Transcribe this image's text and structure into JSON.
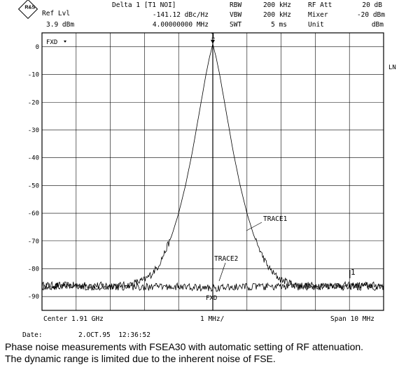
{
  "header": {
    "logo": "R&S",
    "ref_lvl_label": "Ref Lvl",
    "ref_lvl_value": "3.9 dBm",
    "marker_title": "Delta 1 [T1 NOI]",
    "marker_value": "-141.12 dBc/Hz",
    "marker_freq": "4.00000000 MHz",
    "rbw_label": "RBW",
    "rbw_value": "200 kHz",
    "vbw_label": "VBW",
    "vbw_value": "200 kHz",
    "swt_label": "SWT",
    "swt_value": "5 ms",
    "rfatt_label": "RF Att",
    "rfatt_value": "20 dB",
    "mixer_label": "Mixer",
    "mixer_value": "-20 dBm",
    "unit_label": "Unit",
    "unit_value": "dBm"
  },
  "screen_labels": {
    "fxd_top": "FXD",
    "ln": "LN",
    "fxd_bottom": "FXD",
    "marker1": "1",
    "marker_delta": "1"
  },
  "footer": {
    "center": "Center 1.91 GHz",
    "div": "1 MHz/",
    "span": "Span 10 MHz",
    "date_label": "Date:",
    "date_value": "2.OCT.95  12:36:52"
  },
  "caption": [
    "Phase noise measurements with FSEA30 with automatic setting of RF attenuation.",
    "The dynamic range is limited due to the inherent noise of FSE."
  ],
  "chart_data": {
    "type": "line",
    "x_unit": "MHz offset from center",
    "xlim": [
      -5,
      5
    ],
    "ylim": [
      -95,
      5
    ],
    "yticks": [
      0,
      -10,
      -20,
      -30,
      -40,
      -50,
      -60,
      -70,
      -80,
      -90
    ],
    "ytick_labels": [
      "0",
      "-10",
      "-20",
      "-30",
      "-40",
      "-50",
      "-60",
      "-70",
      "-80",
      "-90"
    ],
    "grid": true,
    "series": [
      {
        "name": "TRACE1",
        "color": "#000000",
        "x": [
          -5,
          -2.5,
          -2.0,
          -1.8,
          -1.6,
          -1.4,
          -1.2,
          -1.0,
          -0.8,
          -0.6,
          -0.4,
          -0.2,
          -0.1,
          0,
          0.1,
          0.2,
          0.4,
          0.6,
          0.8,
          1.0,
          1.2,
          1.4,
          1.6,
          1.8,
          2.0,
          2.5,
          3.0,
          5
        ],
        "y": [
          -86,
          -86,
          -84,
          -82,
          -79,
          -74,
          -68,
          -60,
          -50,
          -38,
          -24,
          -10,
          -4,
          1,
          -4,
          -10,
          -24,
          -38,
          -50,
          -60,
          -68,
          -74,
          -79,
          -82,
          -84,
          -86,
          -86,
          -86
        ]
      },
      {
        "name": "TRACE2",
        "color": "#000000",
        "x": [
          -5,
          -4,
          -3,
          -2,
          -1,
          0,
          1,
          2,
          3,
          4,
          5
        ],
        "y": [
          -86.5,
          -86.5,
          -86.5,
          -86.5,
          -86.5,
          -87,
          -86.5,
          -86.5,
          -86.5,
          -86.5,
          -86.5
        ]
      }
    ],
    "annotations": [
      "TRACE1",
      "TRACE2"
    ]
  }
}
